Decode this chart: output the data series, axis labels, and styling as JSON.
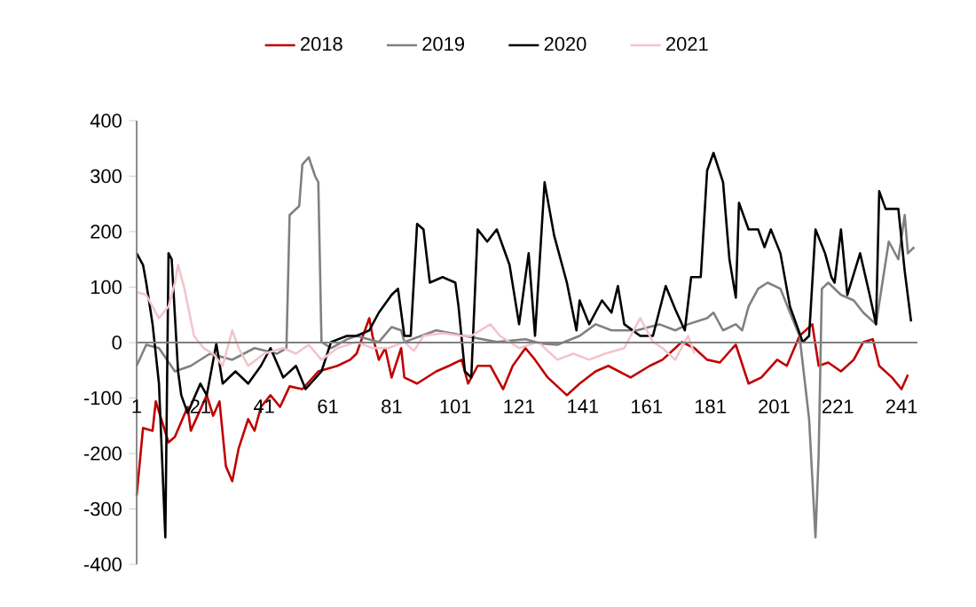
{
  "chart_data": {
    "type": "line",
    "xlim": [
      1,
      246
    ],
    "ylim": [
      -400,
      400
    ],
    "xticks": [
      1,
      21,
      41,
      61,
      81,
      101,
      121,
      141,
      161,
      181,
      201,
      221,
      241
    ],
    "yticks": [
      -400,
      -300,
      -200,
      -100,
      0,
      100,
      200,
      300,
      400
    ],
    "legend": "top",
    "series": [
      {
        "name": "2018",
        "color": "#c00000",
        "x": [
          1,
          3,
          6,
          7,
          11,
          13,
          17,
          18,
          23,
          25,
          27,
          29,
          31,
          33,
          36,
          38,
          40,
          43,
          46,
          49,
          53,
          58,
          64,
          68,
          70,
          74,
          75,
          77,
          79,
          81,
          84,
          85,
          89,
          95,
          99,
          103,
          105,
          108,
          112,
          116,
          119,
          123,
          126,
          130,
          136,
          140,
          145,
          149,
          156,
          162,
          166,
          170,
          172,
          176,
          180,
          184,
          188,
          189,
          193,
          197,
          202,
          205,
          209,
          213,
          215,
          218,
          222,
          226,
          229,
          232,
          234,
          238,
          241,
          243
        ],
        "values": [
          -276,
          -154,
          -159,
          -106,
          -180,
          -170,
          -116,
          -159,
          -95,
          -132,
          -106,
          -223,
          -250,
          -191,
          -138,
          -159,
          -116,
          -95,
          -116,
          -79,
          -84,
          -52,
          -42,
          -31,
          -20,
          44,
          12,
          -31,
          -10,
          -63,
          -10,
          -63,
          -74,
          -52,
          -42,
          -31,
          -74,
          -42,
          -42,
          -84,
          -42,
          -10,
          -31,
          -63,
          -95,
          -74,
          -52,
          -42,
          -63,
          -42,
          -31,
          -10,
          1,
          -10,
          -31,
          -36,
          -10,
          -4,
          -74,
          -63,
          -31,
          -42,
          12,
          33,
          -42,
          -36,
          -52,
          -31,
          1,
          6,
          -42,
          -63,
          -84,
          -58
        ]
      },
      {
        "name": "2019",
        "color": "#808080",
        "x": [
          1,
          4,
          8,
          13,
          18,
          24,
          31,
          38,
          45,
          48,
          49,
          52,
          53,
          55,
          57,
          58,
          59,
          62,
          67,
          70,
          77,
          81,
          84,
          85,
          95,
          104,
          114,
          123,
          128,
          133,
          140,
          145,
          150,
          158,
          165,
          170,
          174,
          180,
          182,
          185,
          189,
          191,
          193,
          196,
          199,
          203,
          206,
          209,
          212,
          214,
          215,
          216,
          218,
          222,
          226,
          229,
          233,
          235,
          237,
          240,
          242,
          243,
          245
        ],
        "values": [
          -42,
          -4,
          -10,
          -52,
          -42,
          -20,
          -31,
          -10,
          -20,
          -10,
          230,
          246,
          321,
          334,
          300,
          289,
          1,
          -10,
          6,
          12,
          1,
          28,
          22,
          1,
          22,
          12,
          1,
          6,
          -2,
          -4,
          12,
          33,
          22,
          22,
          33,
          22,
          33,
          44,
          54,
          22,
          33,
          22,
          65,
          97,
          108,
          97,
          54,
          12,
          -138,
          -351,
          -202,
          97,
          108,
          86,
          76,
          54,
          33,
          108,
          182,
          150,
          230,
          161,
          172
        ]
      },
      {
        "name": "2020",
        "color": "#000000",
        "x": [
          1,
          3,
          4,
          6,
          8,
          10,
          11,
          12,
          14,
          15,
          17,
          21,
          23,
          26,
          28,
          32,
          36,
          40,
          43,
          47,
          51,
          54,
          59,
          62,
          67,
          70,
          74,
          77,
          81,
          83,
          85,
          87,
          89,
          91,
          93,
          97,
          101,
          102,
          104,
          106,
          108,
          111,
          114,
          118,
          121,
          124,
          126,
          129,
          132,
          136,
          139,
          140,
          143,
          147,
          150,
          152,
          154,
          159,
          163,
          167,
          170,
          173,
          175,
          178,
          180,
          182,
          185,
          187,
          189,
          190,
          193,
          196,
          198,
          200,
          203,
          206,
          210,
          212,
          214,
          217,
          219,
          220,
          222,
          224,
          228,
          231,
          233,
          234,
          236,
          240,
          242,
          244
        ],
        "values": [
          161,
          140,
          108,
          33,
          -74,
          -351,
          161,
          150,
          -52,
          -95,
          -127,
          -74,
          -95,
          -2,
          -74,
          -52,
          -74,
          -42,
          -10,
          -63,
          -42,
          -84,
          -52,
          1,
          12,
          12,
          22,
          54,
          86,
          97,
          12,
          12,
          214,
          204,
          108,
          118,
          108,
          65,
          -52,
          -63,
          204,
          182,
          204,
          140,
          33,
          161,
          12,
          289,
          193,
          108,
          22,
          76,
          33,
          76,
          54,
          102,
          33,
          12,
          12,
          102,
          60,
          22,
          118,
          118,
          310,
          342,
          289,
          150,
          81,
          252,
          204,
          204,
          172,
          204,
          161,
          65,
          1,
          12,
          204,
          161,
          118,
          108,
          204,
          86,
          161,
          86,
          33,
          273,
          241,
          241,
          129,
          38
        ]
      },
      {
        "name": "2021",
        "color": "#f2c4cc",
        "x": [
          1,
          4,
          8,
          11,
          13,
          14,
          16,
          19,
          22,
          25,
          28,
          31,
          33,
          36,
          41,
          47,
          51,
          55,
          59,
          64,
          70,
          75,
          80,
          85,
          88,
          91,
          97,
          103,
          106,
          112,
          115,
          121,
          127,
          133,
          138,
          143,
          148,
          154,
          159,
          163,
          166,
          170,
          174,
          176
        ],
        "values": [
          91,
          86,
          44,
          65,
          108,
          140,
          97,
          12,
          -10,
          -20,
          -42,
          22,
          -10,
          -42,
          -20,
          -10,
          -20,
          -4,
          -31,
          -10,
          1,
          -10,
          -10,
          1,
          -15,
          12,
          17,
          12,
          12,
          33,
          12,
          -10,
          1,
          -31,
          -20,
          -31,
          -20,
          -10,
          44,
          1,
          -10,
          -31,
          12,
          -20
        ]
      }
    ]
  }
}
